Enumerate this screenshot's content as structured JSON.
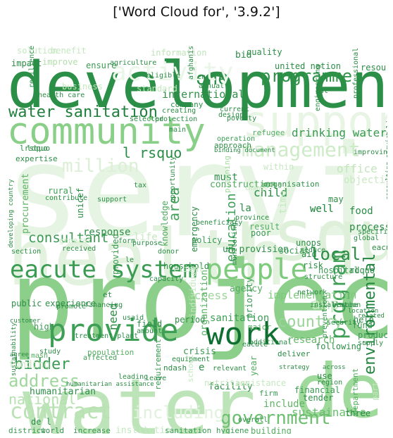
{
  "title": "['Word Cloud for', '3.9.2']",
  "words": [
    {
      "text": "service",
      "color": "#e6f4e3"
    },
    {
      "text": "health",
      "color": "#e3f2df"
    },
    {
      "text": "rsquo",
      "color": "#dff0da"
    },
    {
      "text": "support",
      "color": "#e8f5e5"
    },
    {
      "text": "development",
      "color": "#2b8f47"
    },
    {
      "text": "community",
      "color": "#89cf88"
    },
    {
      "text": "project",
      "color": "#8ccf8a"
    },
    {
      "text": "water",
      "color": "#bde4b8"
    },
    {
      "text": "de",
      "color": "#9fd99b"
    },
    {
      "text": "provide",
      "color": "#3d9e55"
    },
    {
      "text": "work",
      "color": "#0e6f31"
    },
    {
      "text": "people",
      "color": "#7ecb7e"
    },
    {
      "text": "eacute system",
      "color": "#3a9c52"
    },
    {
      "text": "programme",
      "color": "#2f9448"
    },
    {
      "text": "water sanitation",
      "color": "#1f7f3c"
    },
    {
      "text": "management",
      "color": "#cdebc7"
    },
    {
      "text": "program",
      "color": "#3f9f56"
    },
    {
      "text": "environmental",
      "color": "#22843f"
    },
    {
      "text": "contract",
      "color": "#b9e2b3"
    },
    {
      "text": "government",
      "color": "#6fbf72"
    },
    {
      "text": "bidder",
      "color": "#3a9b53"
    },
    {
      "text": "address",
      "color": "#9fd79c"
    },
    {
      "text": "consultant",
      "color": "#3a9a52"
    },
    {
      "text": "education",
      "color": "#3c9e55"
    },
    {
      "text": "local",
      "color": "#2a8c45"
    },
    {
      "text": "country",
      "color": "#9ad499"
    },
    {
      "text": "one",
      "color": "#2b8d46"
    },
    {
      "text": "million",
      "color": "#dcefd7"
    },
    {
      "text": "l rsquo",
      "color": "#2b8c45"
    },
    {
      "text": "area",
      "color": "#45a25a"
    },
    {
      "text": "drinking water",
      "color": "#3a9a53"
    },
    {
      "text": "need",
      "color": "#2c8d46"
    },
    {
      "text": "national",
      "color": "#b5e0af"
    },
    {
      "text": "including",
      "color": "#e0f1dc"
    },
    {
      "text": "amp",
      "color": "#c5e8c0"
    },
    {
      "text": "activity",
      "color": "#eaf6e7"
    },
    {
      "text": "implementation",
      "color": "#7dc97d"
    },
    {
      "text": "international",
      "color": "#2e8f47"
    },
    {
      "text": "sanitation",
      "color": "#3e9f56"
    },
    {
      "text": "office",
      "color": "#c3e6bd"
    },
    {
      "text": "access",
      "color": "#9ad598"
    },
    {
      "text": "sustainable",
      "color": "#6abf6f"
    },
    {
      "text": "organization",
      "color": "#55b062"
    },
    {
      "text": "construction",
      "color": "#4da85c"
    },
    {
      "text": "child",
      "color": "#2b8c45"
    },
    {
      "text": "research",
      "color": "#63b768"
    },
    {
      "text": "response",
      "color": "#2e8f48"
    },
    {
      "text": "humanitarian",
      "color": "#2d8e47"
    },
    {
      "text": "la",
      "color": "#2c8d46"
    },
    {
      "text": "well",
      "color": "#2b8d46"
    },
    {
      "text": "food",
      "color": "#2a8b45"
    },
    {
      "text": "objective",
      "color": "#c9e9c3"
    },
    {
      "text": "process",
      "color": "#2b8c45"
    },
    {
      "text": "hospital",
      "color": "#3a9a53"
    },
    {
      "text": "household",
      "color": "#2e8f47"
    },
    {
      "text": "agency",
      "color": "#55ad61"
    },
    {
      "text": "include",
      "color": "#5fb466"
    },
    {
      "text": "building",
      "color": "#55ad61"
    },
    {
      "text": "facility",
      "color": "#2c8d46"
    },
    {
      "text": "period",
      "color": "#2e8e47"
    },
    {
      "text": "field",
      "color": "#2a8b44"
    },
    {
      "text": "crisis",
      "color": "#3b9b53"
    },
    {
      "text": "procurement",
      "color": "#5fb365"
    },
    {
      "text": "rural",
      "color": "#3b9c53"
    },
    {
      "text": "must",
      "color": "#2d8e47"
    },
    {
      "text": "organisation",
      "color": "#2d8e47"
    },
    {
      "text": "policy",
      "color": "#3a9a52"
    },
    {
      "text": "emergency",
      "color": "#2b8c45"
    },
    {
      "text": "knowledge",
      "color": "#4ea95d"
    },
    {
      "text": "provided",
      "color": "#3b9b53"
    },
    {
      "text": "financial",
      "color": "#3a9a53"
    },
    {
      "text": "year",
      "color": "#55ad61"
    },
    {
      "text": "tender",
      "color": "#2e8f47"
    },
    {
      "text": "department",
      "color": "#55ad61"
    },
    {
      "text": "three",
      "color": "#2b8c45"
    },
    {
      "text": "fund",
      "color": "#3a9a52"
    },
    {
      "text": "help",
      "color": "#2b8c45"
    },
    {
      "text": "product",
      "color": "#3a9a52"
    },
    {
      "text": "following",
      "color": "#2d8e47"
    },
    {
      "text": "high",
      "color": "#3a9a52"
    },
    {
      "text": "experience",
      "color": "#2d8e47"
    },
    {
      "text": "public",
      "color": "#2e8f47"
    },
    {
      "text": "funding",
      "color": "#cdebc7"
    },
    {
      "text": "quality",
      "color": "#2d8e47"
    },
    {
      "text": "bid",
      "color": "#2b8c45"
    },
    {
      "text": "information",
      "color": "#bfe4ba"
    },
    {
      "text": "improve",
      "color": "#b2dfac"
    },
    {
      "text": "ensure",
      "color": "#3a9a52"
    },
    {
      "text": "united nation",
      "color": "#2b8c45"
    },
    {
      "text": "district",
      "color": "#3a9a52"
    },
    {
      "text": "world",
      "color": "#2e8f47"
    },
    {
      "text": "increase",
      "color": "#3a9a52"
    },
    {
      "text": "institution",
      "color": "#c5e8c0"
    },
    {
      "text": "sanitation hygiene",
      "color": "#3a9a52"
    },
    {
      "text": "company",
      "color": "#2d8e47"
    },
    {
      "text": "expertise",
      "color": "#2b8c45"
    },
    {
      "text": "approach",
      "color": "#2e8f47"
    },
    {
      "text": "operation",
      "color": "#3a9a52"
    },
    {
      "text": "refugee",
      "color": "#55ad61"
    },
    {
      "text": "lrsquo",
      "color": "#2b8c45"
    },
    {
      "text": "ldquo",
      "color": "#2b8c45"
    },
    {
      "text": "rdquo",
      "color": "#2b8c45"
    },
    {
      "text": "population",
      "color": "#55ad61"
    },
    {
      "text": "requirement",
      "color": "#3a9a52"
    },
    {
      "text": "delivery",
      "color": "#2b8c45"
    },
    {
      "text": "life",
      "color": "#c5e8c0"
    },
    {
      "text": "un provision",
      "color": "#2d8e47"
    },
    {
      "text": "poor",
      "color": "#3a9a52"
    },
    {
      "text": "result",
      "color": "#55ad61"
    },
    {
      "text": "social",
      "color": "#3a9a52"
    },
    {
      "text": "risk",
      "color": "#2b8c45"
    },
    {
      "text": "unops",
      "color": "#2d8e47"
    },
    {
      "text": "may",
      "color": "#2d8e47"
    },
    {
      "text": "within",
      "color": "#c5e8c0"
    },
    {
      "text": "among",
      "color": "#55ad61"
    },
    {
      "text": "planning",
      "color": "#a7dba3"
    },
    {
      "text": "mash",
      "color": "#55ad61"
    },
    {
      "text": "affected",
      "color": "#3a9a52"
    },
    {
      "text": "humanitarian assistance",
      "color": "#2d8e47"
    },
    {
      "text": "nutrition",
      "color": "#c5e8c0"
    },
    {
      "text": "assistance",
      "color": "#c5e8c0"
    },
    {
      "text": "equipment",
      "color": "#2b8c45"
    },
    {
      "text": "ndash",
      "color": "#2b8c45"
    },
    {
      "text": "firm",
      "color": "#3a9a52"
    },
    {
      "text": "use",
      "color": "#2b8c45"
    },
    {
      "text": "region",
      "color": "#2b8c45"
    },
    {
      "text": "become",
      "color": "#2b8c45"
    },
    {
      "text": "network",
      "color": "#2b8c45"
    },
    {
      "text": "major",
      "color": "#55ad61"
    },
    {
      "text": "additional",
      "color": "#2b8c45"
    },
    {
      "text": "priority",
      "color": "#3a9a52"
    },
    {
      "text": "individual",
      "color": "#c5e8c0"
    },
    {
      "text": "client",
      "color": "#c5e8c0"
    },
    {
      "text": "school",
      "color": "#c5e8c0"
    },
    {
      "text": "amount",
      "color": "#2b8c45"
    },
    {
      "text": "et",
      "color": "#2b8c45"
    },
    {
      "text": "de l",
      "color": "#2b8c45"
    },
    {
      "text": "part",
      "color": "#c5e8c0"
    },
    {
      "text": "general",
      "color": "#c5e8c0"
    },
    {
      "text": "section",
      "color": "#2b8c45"
    },
    {
      "text": "solution",
      "color": "#c5e8c0"
    },
    {
      "text": "benefit",
      "color": "#c5e8c0"
    },
    {
      "text": "impact",
      "color": "#2b8c45"
    },
    {
      "text": "agriculture",
      "color": "#2b8c45"
    },
    {
      "text": "protection",
      "color": "#2b8c45"
    },
    {
      "text": "design",
      "color": "#2b8c45"
    },
    {
      "text": "poverty",
      "color": "#2b8c45"
    },
    {
      "text": "health care",
      "color": "#2b8c45"
    },
    {
      "text": "resilience",
      "color": "#2b8c45"
    },
    {
      "text": "business",
      "color": "#c5e8c0"
    },
    {
      "text": "standard",
      "color": "#c5e8c0"
    },
    {
      "text": "professional",
      "color": "#2b8c45"
    },
    {
      "text": "engineering",
      "color": "#2b8c45"
    },
    {
      "text": "resource",
      "color": "#2b8c45"
    },
    {
      "text": "improving",
      "color": "#2b8c45"
    },
    {
      "text": "unicef",
      "color": "#2b8c45"
    },
    {
      "text": "contribute",
      "color": "#2b8c45"
    },
    {
      "text": "purpose",
      "color": "#2b8c45"
    },
    {
      "text": "opportunity",
      "color": "#2b8c45"
    },
    {
      "text": "province",
      "color": "#2b8c45"
    },
    {
      "text": "supply",
      "color": "#2b8c45"
    },
    {
      "text": "global",
      "color": "#2b8c45"
    },
    {
      "text": "time",
      "color": "#c5e8c0"
    },
    {
      "text": "change",
      "color": "#c5e8c0"
    },
    {
      "text": "form",
      "color": "#2b8c45"
    },
    {
      "text": "usaid",
      "color": "#2b8c45"
    },
    {
      "text": "strategy",
      "color": "#2b8c45"
    },
    {
      "text": "sustainability",
      "color": "#2b8c45"
    },
    {
      "text": "promote",
      "color": "#2b8c45"
    },
    {
      "text": "treatment plant",
      "color": "#2b8c45"
    },
    {
      "text": "financing",
      "color": "#2b8c45"
    },
    {
      "text": "study",
      "color": "#2b8c45"
    },
    {
      "text": "eacute",
      "color": "#2b8c45"
    },
    {
      "text": "le",
      "color": "#2b8c45"
    },
    {
      "text": "e",
      "color": "#2b8c45"
    },
    {
      "text": "aid",
      "color": "#2b8c45"
    },
    {
      "text": "deliver",
      "color": "#2b8c45"
    },
    {
      "text": "relevant",
      "color": "#2b8c45"
    },
    {
      "text": "overall",
      "color": "#2b8c45"
    },
    {
      "text": "structure",
      "color": "#2b8c45"
    },
    {
      "text": "specific",
      "color": "#2b8c45"
    },
    {
      "text": "eacute e",
      "color": "#2b8c45"
    },
    {
      "text": "prevention",
      "color": "#2b8c45"
    },
    {
      "text": "security",
      "color": "#2b8c45"
    },
    {
      "text": "capacity",
      "color": "#2b8c45"
    },
    {
      "text": "donor",
      "color": "#2b8c45"
    },
    {
      "text": "support",
      "color": "#2b8c45"
    },
    {
      "text": "installation",
      "color": "#2b8c45"
    },
    {
      "text": "monitoring",
      "color": "#2b8c45"
    },
    {
      "text": "leading",
      "color": "#2b8c45"
    },
    {
      "text": "location",
      "color": "#2b8c45"
    },
    {
      "text": "eligible",
      "color": "#2b8c45"
    },
    {
      "text": "main",
      "color": "#2b8c45"
    },
    {
      "text": "en",
      "color": "#2b8c45"
    },
    {
      "text": "est",
      "color": "#2b8c45"
    },
    {
      "text": "afghanistan",
      "color": "#2b8c45"
    },
    {
      "text": "annual",
      "color": "#2b8c45"
    },
    {
      "text": "current",
      "color": "#2b8c45"
    },
    {
      "text": "creating",
      "color": "#2b8c45"
    },
    {
      "text": "binding document",
      "color": "#2b8c45"
    },
    {
      "text": "selected",
      "color": "#2b8c45"
    },
    {
      "text": "tax",
      "color": "#2b8c45"
    },
    {
      "text": "beneficiary",
      "color": "#2b8c45"
    },
    {
      "text": "reduce",
      "color": "#2b8c45"
    },
    {
      "text": "developing country",
      "color": "#2b8c45"
    },
    {
      "text": "consulting service",
      "color": "#2b8c45"
    },
    {
      "text": "customer",
      "color": "#2b8c45"
    },
    {
      "text": "agree",
      "color": "#2b8c45"
    },
    {
      "text": "leave",
      "color": "#2b8c45"
    },
    {
      "text": "related",
      "color": "#2b8c45"
    },
    {
      "text": "across",
      "color": "#2b8c45"
    },
    {
      "text": "received",
      "color": "#2b8c45"
    },
    {
      "text": "well",
      "color": "#2b8c45"
    }
  ]
}
